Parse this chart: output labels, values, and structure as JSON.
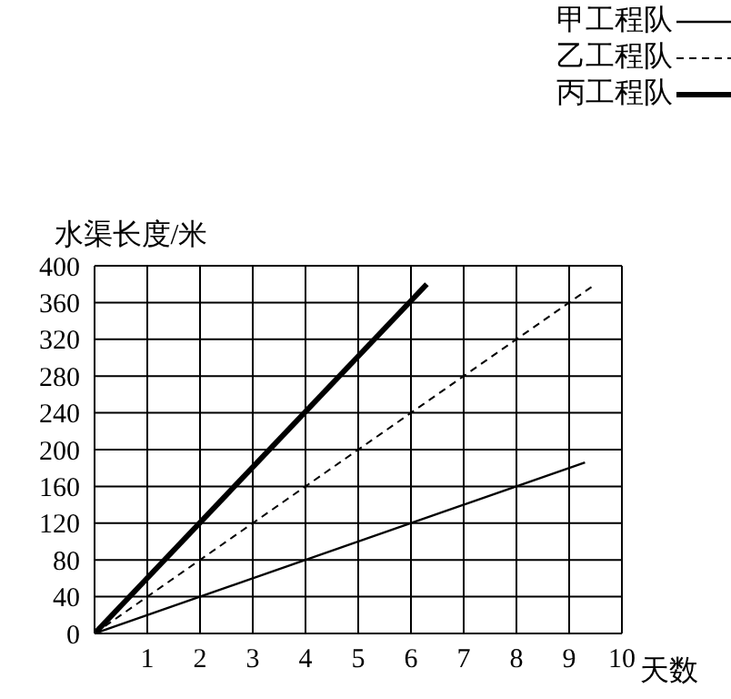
{
  "chart_data": {
    "type": "line",
    "xlabel": "天数",
    "ylabel": "水渠长度/米",
    "xlim": [
      0,
      10
    ],
    "xticks": [
      1,
      2,
      3,
      4,
      5,
      6,
      7,
      8,
      9,
      10
    ],
    "ylim": [
      0,
      400
    ],
    "yticks": [
      0,
      40,
      80,
      120,
      160,
      200,
      240,
      280,
      320,
      360,
      400
    ],
    "series": [
      {
        "name": "甲工程队",
        "color": "#000000",
        "line_style": "solid",
        "x": [
          0,
          9.3
        ],
        "values": [
          0,
          186
        ]
      },
      {
        "name": "乙工程队",
        "color": "#000000",
        "line_style": "dashed",
        "x": [
          0,
          9.5
        ],
        "values": [
          0,
          380
        ]
      },
      {
        "name": "丙工程队",
        "color": "#000000",
        "line_style": "solid",
        "x": [
          0,
          6.3
        ],
        "values": [
          0,
          380
        ]
      }
    ],
    "grid": true,
    "legend": "top right",
    "marker": "none"
  }
}
